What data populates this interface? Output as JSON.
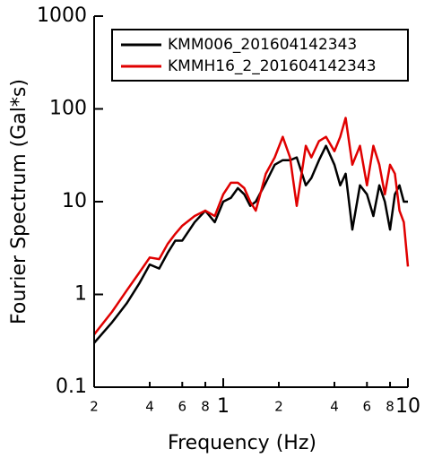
{
  "chart_data": {
    "type": "line",
    "x_label": "Frequency (Hz)",
    "y_label": "Fourier Spectrum (Gal*s)",
    "log_x": true,
    "log_y": true,
    "legend": "upper right",
    "x": [
      0.2,
      0.25,
      0.3,
      0.35,
      0.4,
      0.45,
      0.5,
      0.55,
      0.6,
      0.7,
      0.8,
      0.9,
      1.0,
      1.1,
      1.2,
      1.3,
      1.4,
      1.5,
      1.7,
      1.9,
      2.1,
      2.3,
      2.5,
      2.8,
      3.0,
      3.3,
      3.6,
      4.0,
      4.3,
      4.6,
      5.0,
      5.5,
      6.0,
      6.5,
      7.0,
      7.5,
      8.0,
      8.5,
      9.0,
      9.5,
      10
    ],
    "series": [
      {
        "name": "KMM006_201604142343",
        "color": "#000000",
        "values": [
          0.3,
          0.5,
          0.8,
          1.3,
          2.1,
          1.9,
          2.8,
          3.8,
          3.8,
          6,
          8,
          6,
          10,
          11,
          14,
          12,
          9,
          10,
          16,
          25,
          28,
          28,
          30,
          15,
          18,
          28,
          40,
          25,
          15,
          20,
          5,
          15,
          12,
          7,
          15,
          10,
          5,
          12,
          15,
          10,
          10
        ]
      },
      {
        "name": "KMMH16_2_201604142343",
        "color": "#e00000",
        "values": [
          0.37,
          0.65,
          1.1,
          1.7,
          2.5,
          2.4,
          3.5,
          4.5,
          5.5,
          7,
          8,
          7,
          12,
          16,
          16,
          14,
          10,
          8,
          20,
          30,
          50,
          30,
          9,
          40,
          30,
          45,
          50,
          35,
          50,
          80,
          25,
          40,
          15,
          40,
          25,
          12,
          25,
          20,
          8,
          6,
          2
        ]
      }
    ],
    "xlim": [
      0.2,
      10
    ],
    "xticks": [
      {
        "value": 0.2,
        "label": "2"
      },
      {
        "value": 0.4,
        "label": "4"
      },
      {
        "value": 0.6,
        "label": "6"
      },
      {
        "value": 0.8,
        "label": "8"
      },
      1,
      {
        "value": 2,
        "label": "2"
      },
      {
        "value": 4,
        "label": "4"
      },
      {
        "value": 6,
        "label": "6"
      },
      {
        "value": 8,
        "label": "8"
      },
      10
    ],
    "ylim": [
      0.1,
      1000
    ],
    "yticks": [
      0.1,
      1,
      10,
      100,
      1000
    ]
  }
}
